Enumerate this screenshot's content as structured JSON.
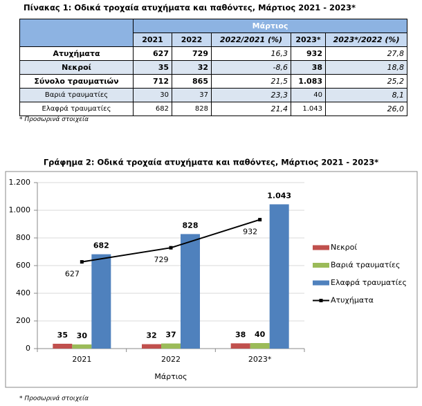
{
  "table": {
    "title": "Πίνακας 1: Οδικά τροχαία ατυχήματα και παθόντες, Μάρτιος 2021 - 2023*",
    "group_header": "Μάρτιος",
    "columns": [
      "2021",
      "2022",
      "2022/2021 (%)",
      "2023*",
      "2023*/2022 (%)"
    ],
    "rows": [
      [
        "Ατυχήματα",
        "627",
        "729",
        "16,3",
        "932",
        "27,8"
      ],
      [
        "Νεκροί",
        "35",
        "32",
        "-8,6",
        "38",
        "18,8"
      ],
      [
        "Σύνολο τραυματιών",
        "712",
        "865",
        "21,5",
        "1.083",
        "25,2"
      ],
      [
        "Βαριά τραυματίες",
        "30",
        "37",
        "23,3",
        "40",
        "8,1"
      ],
      [
        "Ελαφρά τραυματίες",
        "682",
        "828",
        "21,4",
        "1.043",
        "26,0"
      ]
    ],
    "note": "* Προσωρινά στοιχεία"
  },
  "chart_data": {
    "type": "bar",
    "title": "Γράφημα 2: Οδικά τροχαία ατυχήματα και παθόντες, Μάρτιος 2021 - 2023*",
    "x_label": "Μάρτιος",
    "categories": [
      "2021",
      "2022",
      "2023*"
    ],
    "series": [
      {
        "name": "Νεκροί",
        "color": "#c0504d",
        "values": [
          35,
          32,
          38
        ]
      },
      {
        "name": "Βαριά τραυματίες",
        "color": "#9bbb59",
        "values": [
          30,
          37,
          40
        ]
      },
      {
        "name": "Ελαφρά τραυματίες",
        "color": "#4f81bd",
        "values": [
          682,
          828,
          1043
        ],
        "value_labels": [
          "682",
          "828",
          "1.043"
        ]
      },
      {
        "name": "Ατυχήματα",
        "color": "#000000",
        "type": "line",
        "values": [
          627,
          729,
          932
        ]
      }
    ],
    "ylim": [
      0,
      1200
    ],
    "yticks": [
      0,
      200,
      400,
      600,
      800,
      {
        "value": 1000,
        "label": "1.000"
      },
      {
        "value": 1200,
        "label": "1.200"
      }
    ],
    "grid": true,
    "legend": "right",
    "note": "* Προσωρινά στοιχεία"
  }
}
